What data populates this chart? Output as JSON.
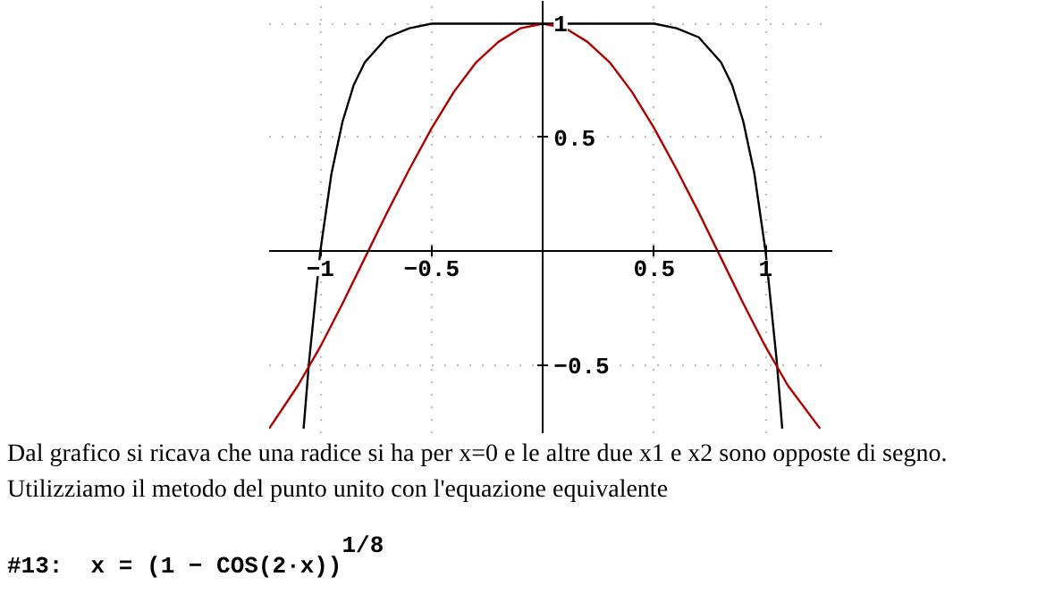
{
  "chart_data": {
    "type": "line",
    "x": [
      -1.075,
      -1.05,
      -1.0,
      -0.95,
      -0.9,
      -0.85,
      -0.8,
      -0.7,
      -0.6,
      -0.5,
      -0.3,
      0,
      0.3,
      0.5,
      0.6,
      0.7,
      0.8,
      0.85,
      0.9,
      0.95,
      1.0,
      1.05,
      1.075
    ],
    "series": [
      {
        "color": "#000000",
        "values": [
          -0.78,
          -0.48,
          0,
          0.34,
          0.57,
          0.73,
          0.83,
          0.94,
          0.98,
          1.0,
          1.0,
          1.0,
          1.0,
          1.0,
          0.98,
          0.94,
          0.83,
          0.73,
          0.57,
          0.34,
          0,
          -0.48,
          -0.78
        ]
      },
      {
        "color": "#b00000",
        "x": [
          -1.23,
          -1.1,
          -1.0,
          -0.9,
          -0.8,
          -0.7,
          -0.6,
          -0.5,
          -0.4,
          -0.3,
          -0.2,
          -0.1,
          0,
          0.1,
          0.2,
          0.3,
          0.4,
          0.5,
          0.6,
          0.7,
          0.8,
          0.9,
          1.0,
          1.1,
          1.245
        ],
        "values": [
          -0.78,
          -0.59,
          -0.42,
          -0.23,
          -0.03,
          0.17,
          0.36,
          0.54,
          0.7,
          0.83,
          0.92,
          0.98,
          1.0,
          0.98,
          0.92,
          0.83,
          0.7,
          0.54,
          0.36,
          0.17,
          -0.03,
          -0.23,
          -0.42,
          -0.59,
          -0.78
        ]
      }
    ],
    "xlim": [
      -1.23,
      1.3
    ],
    "ylim": [
      -0.8,
      1.1
    ],
    "xticks": [
      -1,
      -0.5,
      0.5,
      1
    ],
    "yticks": [
      -0.5,
      0.5,
      1
    ],
    "grid": true,
    "line_style": "solid",
    "annotations": [
      "Dal grafico si ricava che una radice si ha per x=0 e le altre due x1 e x2 sono opposte di segno.",
      "Utilizziamo il metodo del punto unito con l'equazione equivalente",
      "#13:  x = (1 − COS(2·x))$^{1/8}$"
    ]
  }
}
